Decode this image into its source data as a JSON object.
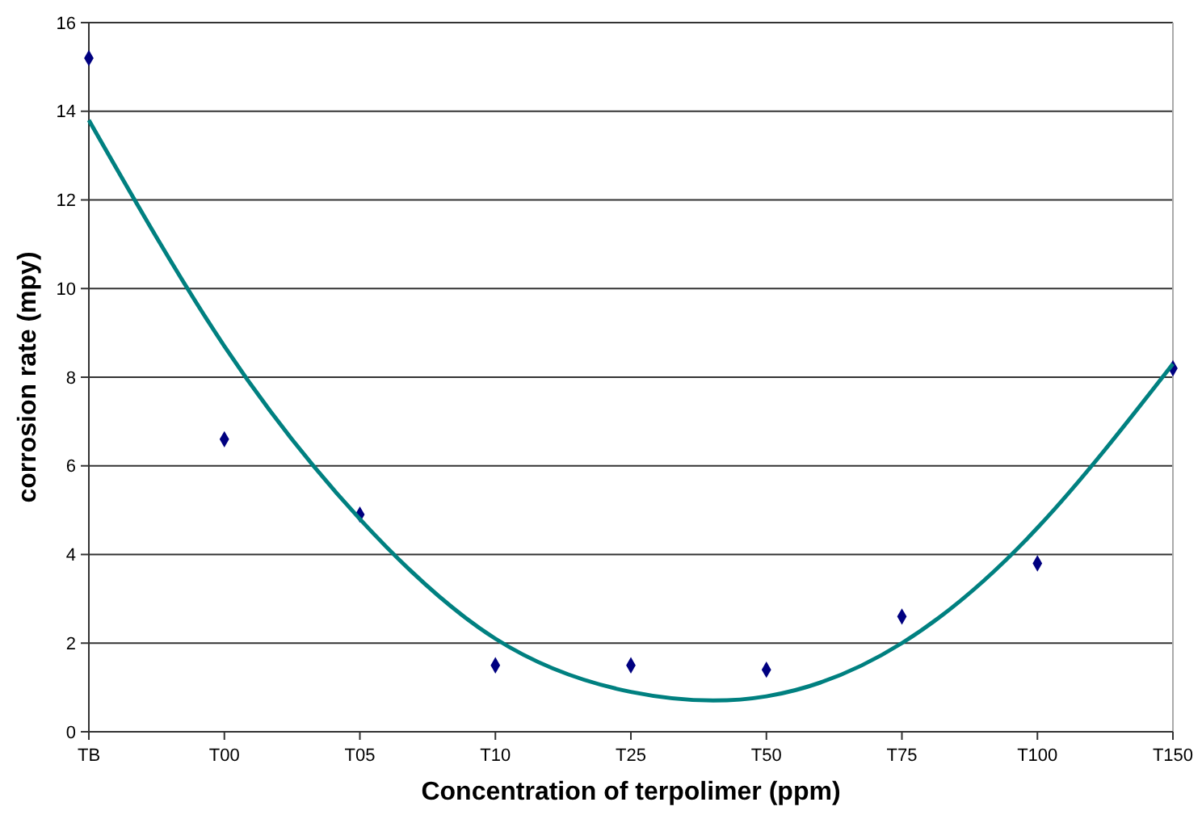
{
  "chart_data": {
    "type": "scatter",
    "xlabel": "Concentration of terpolimer (ppm)",
    "ylabel": "corrosion rate (mpy)",
    "categories": [
      "TB",
      "T00",
      "T05",
      "T10",
      "T25",
      "T50",
      "T75",
      "T100",
      "T150"
    ],
    "series": [
      {
        "color": "#000080",
        "marker": "diamond",
        "values": [
          15.2,
          6.6,
          4.9,
          1.5,
          1.5,
          1.4,
          2.6,
          3.8,
          8.2
        ]
      },
      {
        "type": "line",
        "color": "#008080",
        "marker": "none",
        "line_style": "solid",
        "values": [
          13.8,
          8.7,
          4.8,
          2.1,
          0.9,
          0.8,
          2.0,
          4.6,
          8.3
        ]
      }
    ],
    "ylim": [
      0,
      16
    ],
    "yticks": [
      0,
      2,
      4,
      6,
      8,
      10,
      12,
      14,
      16
    ],
    "grid": "y"
  }
}
